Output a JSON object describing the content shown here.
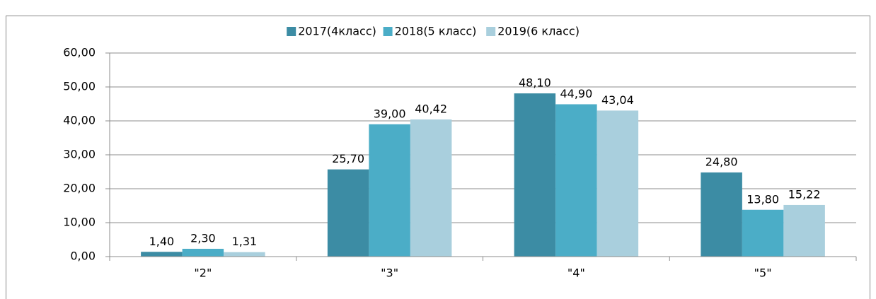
{
  "chart_data": {
    "type": "bar",
    "categories": [
      "\"2\"",
      "\"3\"",
      "\"4\"",
      "\"5\""
    ],
    "series": [
      {
        "name": "2017(4класс)",
        "color": "#3c8ca4",
        "values": [
          1.4,
          25.7,
          48.1,
          24.8
        ],
        "value_labels": [
          "1,40",
          "25,70",
          "48,10",
          "24,80"
        ]
      },
      {
        "name": "2018(5 класс)",
        "color": "#4badc7",
        "values": [
          2.3,
          39.0,
          44.9,
          13.8
        ],
        "value_labels": [
          "2,30",
          "39,00",
          "44,90",
          "13,80"
        ]
      },
      {
        "name": "2019(6 класс)",
        "color": "#a9cfdd",
        "values": [
          1.31,
          40.42,
          43.04,
          15.22
        ],
        "value_labels": [
          "1,31",
          "40,42",
          "43,04",
          "15,22"
        ]
      }
    ],
    "ylim": [
      0,
      60
    ],
    "yticks": [
      {
        "value": 0,
        "label": "0,00"
      },
      {
        "value": 10,
        "label": "10,00"
      },
      {
        "value": 20,
        "label": "20,00"
      },
      {
        "value": 30,
        "label": "30,00"
      },
      {
        "value": 40,
        "label": "40,00"
      },
      {
        "value": 50,
        "label": "50,00"
      },
      {
        "value": 60,
        "label": "60,00"
      }
    ],
    "grid": true,
    "legend": "top"
  }
}
